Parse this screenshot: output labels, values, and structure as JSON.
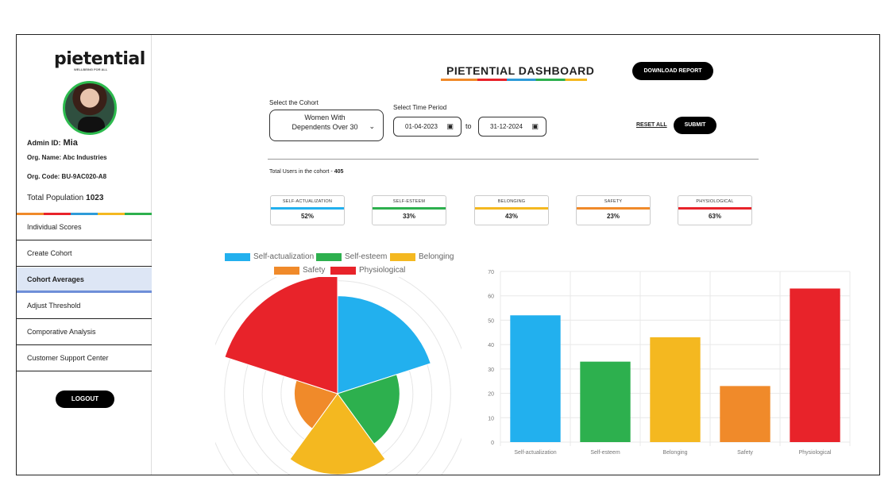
{
  "app": {
    "logo": "pietential",
    "logo_tagline": "WELLBEING FOR ALL"
  },
  "sidebar": {
    "admin_label": "Admin ID:",
    "admin_name": "Mia",
    "org_name": "Org. Name: Abc Industries",
    "org_code": "Org. Code: BU-9AC020-A8",
    "total_population_label": "Total Population",
    "total_population_value": "1023",
    "items": [
      {
        "label": "Individual Scores",
        "active": false
      },
      {
        "label": "Create Cohort",
        "active": false
      },
      {
        "label": "Cohort Averages",
        "active": true
      },
      {
        "label": "Adjust Threshold",
        "active": false
      },
      {
        "label": "Comporative Analysis",
        "active": false
      },
      {
        "label": "Customer Support Center",
        "active": false
      }
    ],
    "logout_label": "LOGOUT"
  },
  "header": {
    "title": "PIETENTIAL  DASHBOARD",
    "download_label": "DOWNLOAD REPORT"
  },
  "filters": {
    "cohort_label": "Select the Cohort",
    "cohort_value": "Women With Dependents Over 30",
    "time_label": "Select Time Period",
    "date_from": "01-04-2023",
    "date_to": "31-12-2024",
    "to_label": "to",
    "reset_label": "RESET ALL",
    "submit_label": "SUBMIT"
  },
  "summary": {
    "total_users_label": "Total Users in the cohort -",
    "total_users_value": "405"
  },
  "metrics": [
    {
      "label": "SELF-ACTUALIZATION",
      "value": "52%",
      "color": "#22b0ee"
    },
    {
      "label": "SELF-ESTEEM",
      "value": "33%",
      "color": "#2db04e"
    },
    {
      "label": "BELONGING",
      "value": "43%",
      "color": "#f4b820"
    },
    {
      "label": "SAFETY",
      "value": "23%",
      "color": "#f08a2a"
    },
    {
      "label": "PHYSIOLOGICAL",
      "value": "63%",
      "color": "#e8232a"
    }
  ],
  "chart_data": [
    {
      "type": "polar-area",
      "legend": [
        "Self-actualization",
        "Self-esteem",
        "Belonging",
        "Safety",
        "Physiological"
      ],
      "categories": [
        "Self-actualization",
        "Self-esteem",
        "Belonging",
        "Safety",
        "Physiological"
      ],
      "values": [
        52,
        33,
        43,
        23,
        63
      ],
      "colors": [
        "#22b0ee",
        "#2db04e",
        "#f4b820",
        "#f08a2a",
        "#e8232a"
      ],
      "legend_placement": "top"
    },
    {
      "type": "bar",
      "categories": [
        "Self-actualization",
        "Self-esteem",
        "Belonging",
        "Safety",
        "Physiological"
      ],
      "values": [
        52,
        33,
        43,
        23,
        63
      ],
      "colors": [
        "#22b0ee",
        "#2db04e",
        "#f4b820",
        "#f08a2a",
        "#e8232a"
      ],
      "ylim": [
        0,
        70
      ],
      "yticks": [
        0,
        10,
        20,
        30,
        40,
        50,
        60,
        70
      ],
      "grid": true
    }
  ]
}
